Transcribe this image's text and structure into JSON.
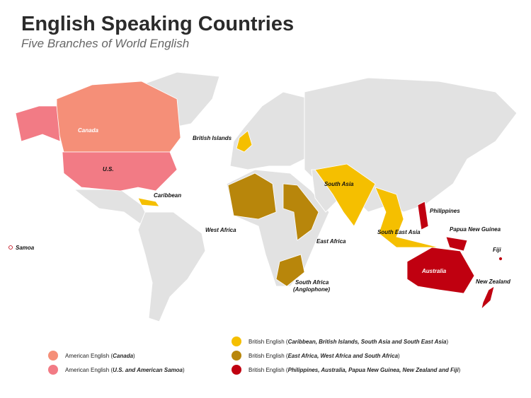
{
  "title": "English Speaking Countries",
  "subtitle": "Five Branches of World English",
  "colors": {
    "canada": "#f58f78",
    "us_samoa": "#f27b85",
    "british_yellow": "#f5bf00",
    "british_olive": "#b8860b",
    "british_red": "#c00010",
    "land": "#e2e2e2"
  },
  "labels": {
    "canada": "Canada",
    "us": "U.S.",
    "caribbean": "Caribbean",
    "samoa": "Samoa",
    "british_islands": "British Islands",
    "south_asia": "South Asia",
    "south_east_asia": "South East Asia",
    "philippines": "Philippines",
    "papua_new_guinea": "Papua New Guinea",
    "fiji": "Fiji",
    "australia": "Australia",
    "new_zealand": "New Zealand",
    "west_africa": "West Africa",
    "east_africa": "East Africa",
    "south_africa": "South Africa",
    "anglophone": "(Anglophone)"
  },
  "legend": [
    {
      "prefix": "American English (",
      "name": "Canada",
      "suffix": ")",
      "color": "#f58f78"
    },
    {
      "prefix": "American English (",
      "name": "U.S. and American Samoa",
      "suffix": ")",
      "color": "#f27b85"
    },
    {
      "prefix": "British English (",
      "name": "Caribbean, British Islands, South Asia and South East Asia",
      "suffix": ")",
      "color": "#f5bf00"
    },
    {
      "prefix": "British English (",
      "name": "East Africa, West Africa and South Africa",
      "suffix": ")",
      "color": "#b8860b"
    },
    {
      "prefix": "British English (",
      "name": "Philippines, Australia, Papua New Guinea, New Zealand and Fiji",
      "suffix": ")",
      "color": "#c00010"
    }
  ]
}
